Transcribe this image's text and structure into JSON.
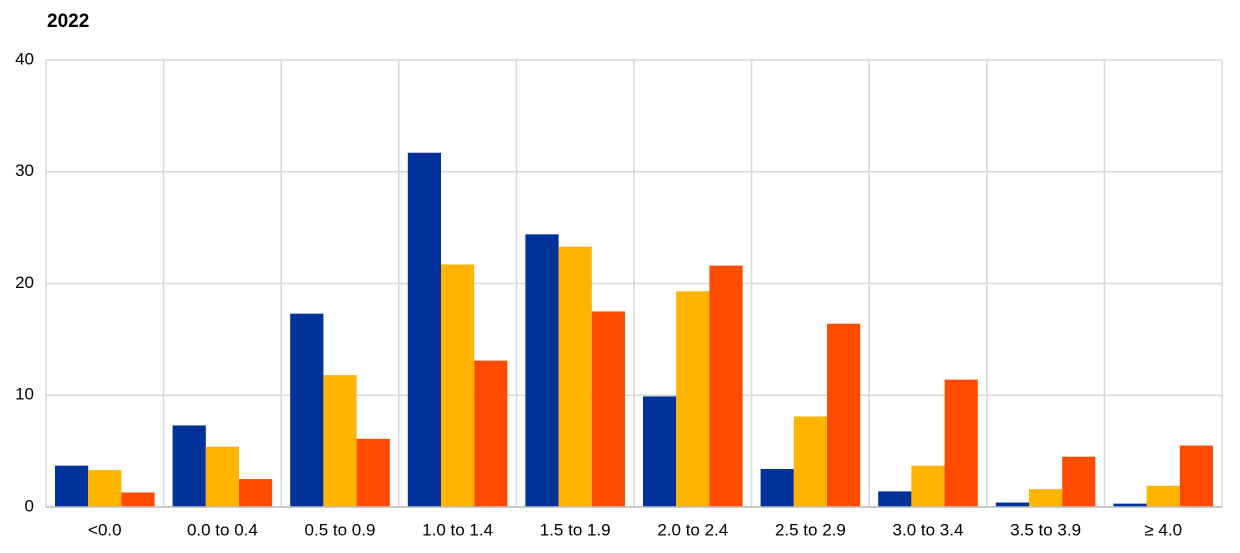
{
  "chart_data": {
    "type": "bar",
    "title": "2022",
    "categories": [
      "<0.0",
      "0.0 to 0.4",
      "0.5 to 0.9",
      "1.0 to 1.4",
      "1.5 to 1.9",
      "2.0 to 2.4",
      "2.5 to 2.9",
      "3.0 to 3.4",
      "3.5 to 3.9",
      "≥ 4.0"
    ],
    "series": [
      {
        "color": "#003299",
        "values": [
          3.7,
          7.3,
          17.3,
          31.7,
          24.4,
          9.9,
          3.4,
          1.4,
          0.4,
          0.3
        ]
      },
      {
        "color": "#ffb400",
        "values": [
          3.3,
          5.4,
          11.8,
          21.7,
          23.3,
          19.3,
          8.1,
          3.7,
          1.6,
          1.9
        ]
      },
      {
        "color": "#ff4b00",
        "values": [
          1.3,
          2.5,
          6.1,
          13.1,
          17.5,
          21.6,
          16.4,
          11.4,
          4.5,
          5.5
        ]
      }
    ],
    "ylim": [
      0,
      40
    ],
    "yticks": [
      0,
      10,
      20,
      30,
      40
    ],
    "grid": true
  }
}
